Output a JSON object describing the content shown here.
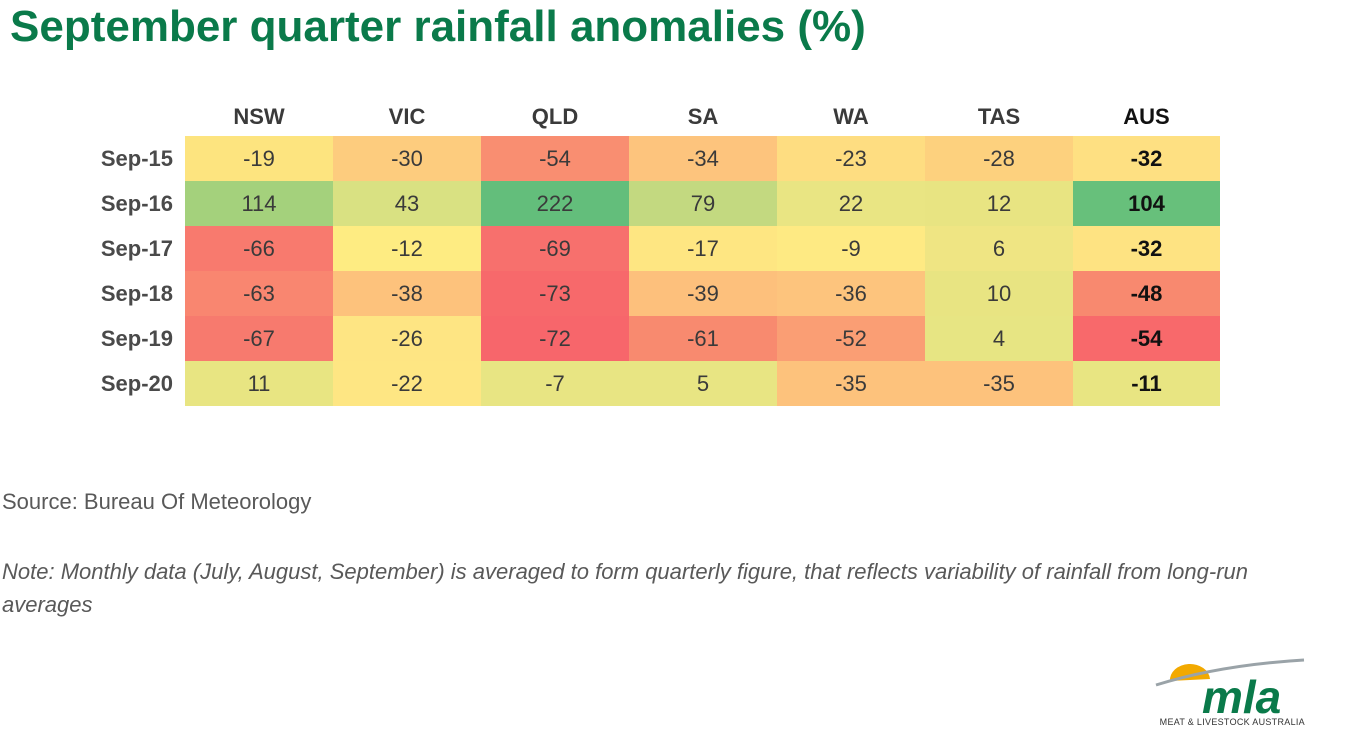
{
  "title": "September quarter rainfall anomalies (%)",
  "source": "Source: Bureau Of Meteorology",
  "note": "Note: Monthly data (July, August, September) is averaged to form quarterly figure, that reflects variability of rainfall from long-run averages",
  "logo": {
    "wordmark": "mla",
    "tagline": "MEAT & LIVESTOCK AUSTRALIA",
    "colors": {
      "green": "#0a7a4a",
      "gold": "#f2a900",
      "grey": "#9aa3a8"
    }
  },
  "scale_colors": {
    "low": "#f8696b",
    "mid": "#ffeb84",
    "high": "#63be7b"
  },
  "chart_data": {
    "type": "heatmap",
    "columns": [
      "NSW",
      "VIC",
      "QLD",
      "SA",
      "WA",
      "TAS",
      "AUS"
    ],
    "rows": [
      "Sep-15",
      "Sep-16",
      "Sep-17",
      "Sep-18",
      "Sep-19",
      "Sep-20"
    ],
    "values": [
      [
        -19,
        -30,
        -54,
        -34,
        -23,
        -28,
        -32
      ],
      [
        114,
        43,
        222,
        79,
        22,
        12,
        104
      ],
      [
        -66,
        -12,
        -69,
        -17,
        -9,
        6,
        -32
      ],
      [
        -63,
        -38,
        -73,
        -39,
        -36,
        10,
        -48
      ],
      [
        -67,
        -26,
        -72,
        -61,
        -52,
        4,
        -54
      ],
      [
        11,
        -22,
        -7,
        5,
        -35,
        -35,
        -11
      ]
    ],
    "cell_colors": [
      [
        "#fde47f",
        "#fdcc7e",
        "#f98e71",
        "#fdc47d",
        "#fedd81",
        "#fdd17e",
        "#fee082"
      ],
      [
        "#a4d17c",
        "#d9e182",
        "#63be7b",
        "#c3d980",
        "#e9e583",
        "#e8e482",
        "#67c07b"
      ],
      [
        "#f87a6e",
        "#feec82",
        "#f7706d",
        "#fee682",
        "#feea83",
        "#efe583",
        "#fee382"
      ],
      [
        "#f98670",
        "#fdc27c",
        "#f7696b",
        "#fdc07c",
        "#fdc47d",
        "#e8e482",
        "#f8896f"
      ],
      [
        "#f77a6e",
        "#fee583",
        "#f7666b",
        "#f88a6f",
        "#fa9e74",
        "#e7e583",
        "#f8696b"
      ],
      [
        "#e8e582",
        "#fee683",
        "#e8e583",
        "#e8e583",
        "#fdc27c",
        "#fdc27c",
        "#e8e582"
      ]
    ],
    "emphasized_column": "AUS"
  }
}
